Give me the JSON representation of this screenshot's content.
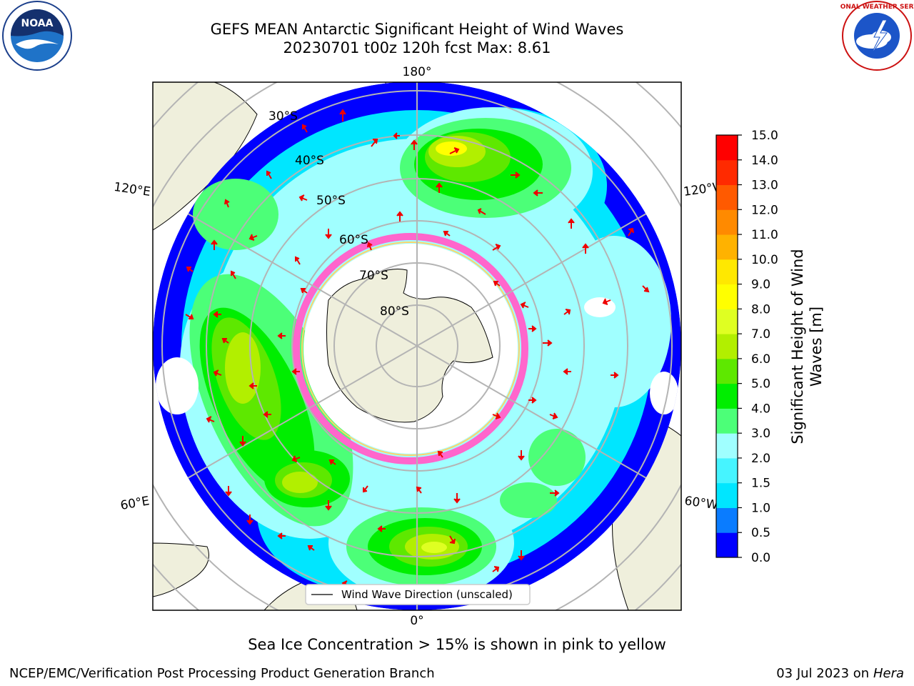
{
  "title": {
    "line1": "GEFS MEAN Antarctic Significant Height of Wind Waves",
    "line2": "20230701 t00z 120h fcst   Max: 8.61"
  },
  "map": {
    "longitude_labels": {
      "top": "180°",
      "bottom": "0°",
      "left_upper": "120°E",
      "left_lower": "60°E",
      "right_upper": "120°W",
      "right_lower": "60°W"
    },
    "latitude_labels": [
      "30°S",
      "40°S",
      "50°S",
      "60°S",
      "70°S",
      "80°S"
    ],
    "legend_text": "Wind Wave Direction (unscaled)",
    "colors": {
      "land": "#efefdc",
      "ice": "#ff66cc",
      "arrow": "#ee0000",
      "grid": "#b4b4b4"
    }
  },
  "colorbar": {
    "label_line1": "Significant Height of Wind",
    "label_line2": "Waves [m]",
    "ticks": [
      "0.0",
      "0.5",
      "1.0",
      "1.5",
      "2.0",
      "3.0",
      "4.0",
      "5.0",
      "6.0",
      "7.0",
      "8.0",
      "9.0",
      "10.0",
      "11.0",
      "12.0",
      "13.0",
      "14.0",
      "15.0"
    ],
    "colors": [
      "#0000ff",
      "#0a7cff",
      "#00e6ff",
      "#46f4ff",
      "#a0ffff",
      "#4cff78",
      "#00ee00",
      "#5ee800",
      "#b2ef00",
      "#dfff22",
      "#ffff00",
      "#ffe800",
      "#ffb200",
      "#ff8a00",
      "#ff5a00",
      "#ff2a00",
      "#ff0000"
    ]
  },
  "logos": {
    "noaa": "NOAA",
    "nws": "NATIONAL WEATHER SERVICE"
  },
  "note": "Sea Ice Concentration > 15% is shown in pink to yellow",
  "footer": {
    "left": "NCEP/EMC/Verification Post Processing Product Generation Branch",
    "right_date": "03 Jul 2023 on ",
    "right_host": "Hera"
  }
}
